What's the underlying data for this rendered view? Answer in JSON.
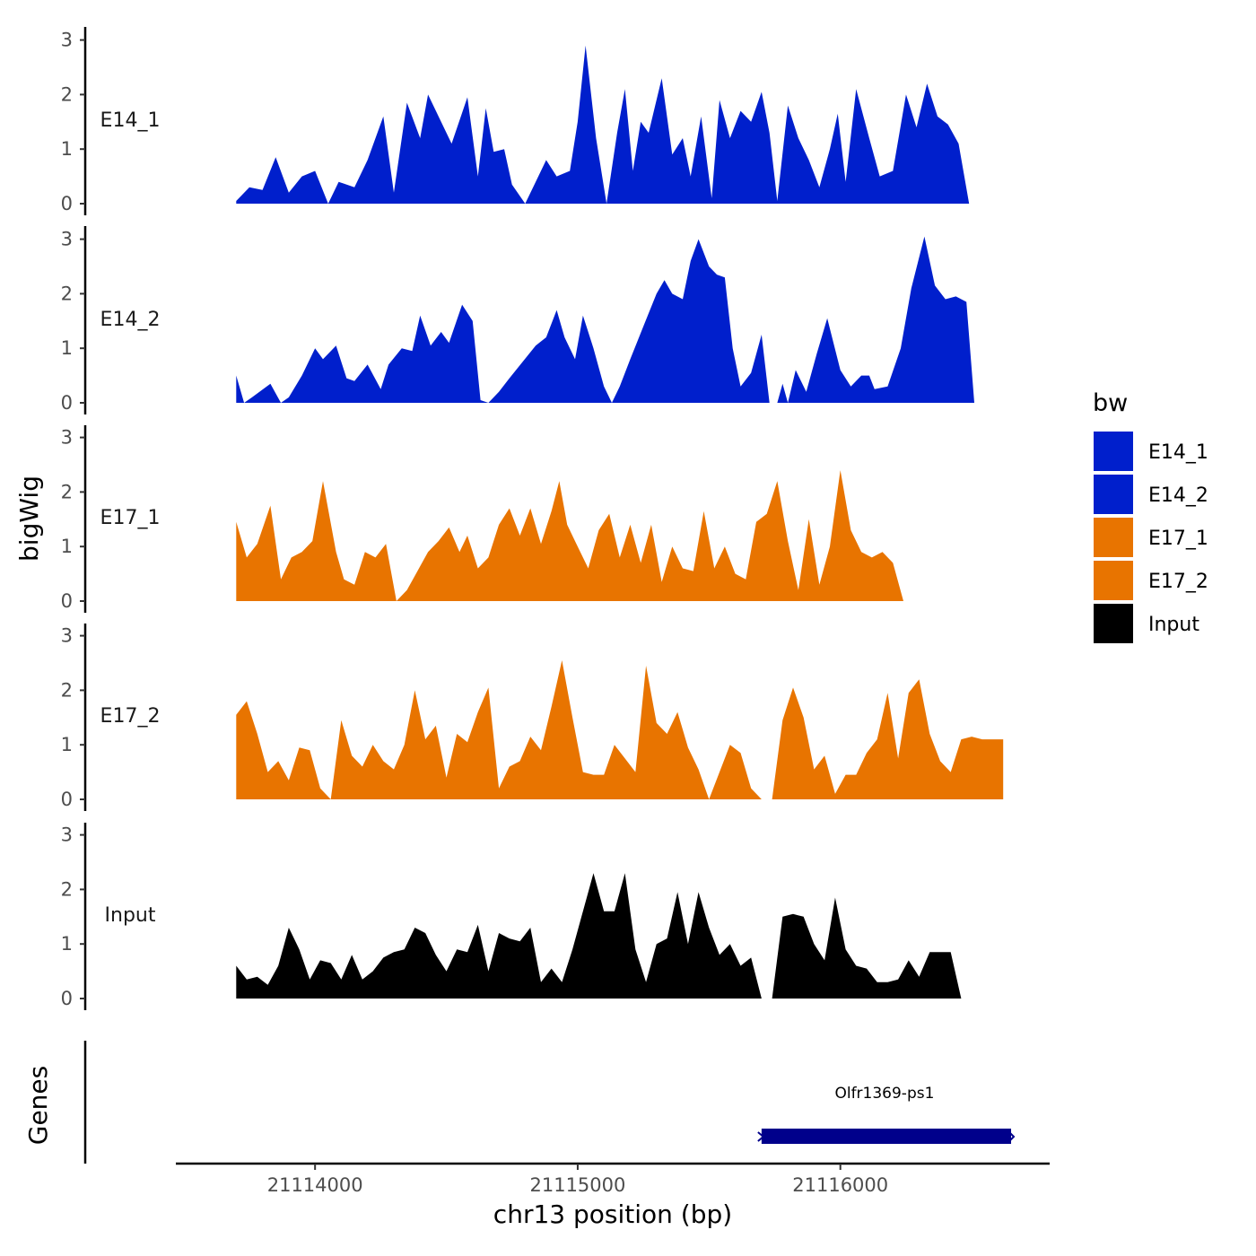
{
  "colors": {
    "E14": "#001fcc",
    "E17": "#e87400",
    "Input": "#000000",
    "gene": "#00008b"
  },
  "chart_data": {
    "type": "area",
    "title": "",
    "xlabel": "chr13 position (bp)",
    "ylabel": "bigWig",
    "genes_label": "Genes",
    "x_ticks": [
      21114000,
      21115000,
      21116000
    ],
    "x_tick_labels": [
      "21114000",
      "21115000",
      "21116000"
    ],
    "xlim": [
      21113470,
      21116790
    ],
    "ylim": [
      0,
      3.2
    ],
    "y_ticks": [
      0,
      1,
      2,
      3
    ],
    "y_tick_labels": [
      "0",
      "1",
      "2",
      "3"
    ],
    "legend": {
      "title": "bw",
      "entries": [
        {
          "name": "E14_1",
          "color": "#001fcc"
        },
        {
          "name": "E14_2",
          "color": "#001fcc"
        },
        {
          "name": "E17_1",
          "color": "#e87400"
        },
        {
          "name": "E17_2",
          "color": "#e87400"
        },
        {
          "name": "Input",
          "color": "#000000"
        }
      ]
    },
    "series": [
      {
        "name": "E14_1",
        "color": "#001fcc",
        "x": [
          21113700,
          21113750,
          21113800,
          21113850,
          21113900,
          21113950,
          21114000,
          21114050,
          21114090,
          21114150,
          21114200,
          21114260,
          21114300,
          21114350,
          21114400,
          21114430,
          21114470,
          21114520,
          21114580,
          21114620,
          21114650,
          21114680,
          21114720,
          21114750,
          21114800,
          21114840,
          21114880,
          21114920,
          21114970,
          21115000,
          21115030,
          21115070,
          21115110,
          21115150,
          21115180,
          21115210,
          21115240,
          21115270,
          21115320,
          21115360,
          21115400,
          21115430,
          21115470,
          21115510,
          21115540,
          21115580,
          21115620,
          21115660,
          21115700,
          21115730,
          21115760,
          21115800,
          21115840,
          21115880,
          21115920,
          21115960,
          21115990,
          21116020,
          21116060,
          21116110,
          21116150,
          21116200,
          21116250,
          21116290,
          21116330,
          21116370,
          21116410,
          21116450,
          21116490,
          21116520,
          21116560,
          21116600,
          21116620
        ],
        "values": [
          0.05,
          0.3,
          0.25,
          0.85,
          0.2,
          0.5,
          0.6,
          0.0,
          0.4,
          0.3,
          0.8,
          1.6,
          0.2,
          1.85,
          1.2,
          2.0,
          1.6,
          1.1,
          1.95,
          0.5,
          1.75,
          0.95,
          1.0,
          0.35,
          0.0,
          0.4,
          0.8,
          0.5,
          0.6,
          1.5,
          2.9,
          1.2,
          0.0,
          1.3,
          2.1,
          0.6,
          1.5,
          1.3,
          2.3,
          0.9,
          1.2,
          0.5,
          1.6,
          0.1,
          1.9,
          1.2,
          1.7,
          1.5,
          2.05,
          1.3,
          0.05,
          1.8,
          1.2,
          0.8,
          0.3,
          1.0,
          1.65,
          0.4,
          2.1,
          1.2,
          0.5,
          0.6,
          2.0,
          1.4,
          2.2,
          1.6,
          1.45,
          1.1,
          0,
          0,
          0,
          0,
          0
        ]
      },
      {
        "name": "E14_2",
        "color": "#001fcc",
        "x": [
          21113700,
          21113730,
          21113760,
          21113830,
          21113870,
          21113900,
          21113950,
          21114000,
          21114030,
          21114080,
          21114120,
          21114150,
          21114200,
          21114250,
          21114280,
          21114330,
          21114370,
          21114400,
          21114440,
          21114480,
          21114510,
          21114560,
          21114600,
          21114630,
          21114660,
          21114700,
          21114740,
          21114790,
          21114840,
          21114880,
          21114920,
          21114950,
          21114990,
          21115020,
          21115060,
          21115100,
          21115130,
          21115160,
          21115200,
          21115250,
          21115300,
          21115330,
          21115360,
          21115400,
          21115430,
          21115460,
          21115500,
          21115530,
          21115560,
          21115590,
          21115620,
          21115660,
          21115700,
          21115730,
          21115760,
          21115780,
          21115800,
          21115830,
          21115870,
          21115910,
          21115950,
          21116000,
          21116040,
          21116080,
          21116110,
          21116130,
          21116180,
          21116230,
          21116270,
          21116320,
          21116360,
          21116400,
          21116440,
          21116480,
          21116510,
          21116540,
          21116570,
          21116600,
          21116630
        ],
        "values": [
          0.5,
          0.0,
          0.1,
          0.35,
          0.0,
          0.1,
          0.5,
          1.0,
          0.8,
          1.05,
          0.45,
          0.4,
          0.7,
          0.25,
          0.7,
          1.0,
          0.95,
          1.6,
          1.05,
          1.3,
          1.1,
          1.8,
          1.5,
          0.05,
          0.0,
          0.2,
          0.45,
          0.75,
          1.05,
          1.2,
          1.7,
          1.2,
          0.8,
          1.6,
          1.0,
          0.3,
          0.0,
          0.3,
          0.8,
          1.4,
          2.0,
          2.25,
          2.0,
          1.9,
          2.6,
          3.0,
          2.5,
          2.35,
          2.3,
          1.0,
          0.3,
          0.55,
          1.25,
          0.0,
          0.0,
          0.35,
          0.0,
          0.6,
          0.2,
          0.9,
          1.55,
          0.6,
          0.3,
          0.5,
          0.5,
          0.25,
          0.3,
          1.0,
          2.1,
          3.05,
          2.15,
          1.9,
          1.95,
          1.85,
          0,
          0,
          0,
          0,
          0
        ]
      },
      {
        "name": "E17_1",
        "color": "#e87400",
        "x": [
          21113700,
          21113740,
          21113780,
          21113830,
          21113870,
          21113910,
          21113950,
          21113990,
          21114030,
          21114080,
          21114110,
          21114150,
          21114190,
          21114230,
          21114270,
          21114310,
          21114350,
          21114390,
          21114430,
          21114470,
          21114510,
          21114550,
          21114580,
          21114620,
          21114660,
          21114700,
          21114740,
          21114780,
          21114820,
          21114860,
          21114900,
          21114930,
          21114960,
          21115000,
          21115040,
          21115080,
          21115120,
          21115160,
          21115200,
          21115240,
          21115280,
          21115320,
          21115360,
          21115400,
          21115440,
          21115480,
          21115520,
          21115560,
          21115600,
          21115640,
          21115680,
          21115720,
          21115760,
          21115800,
          21115840,
          21115880,
          21115920,
          21115960,
          21116000,
          21116040,
          21116080,
          21116120,
          21116160,
          21116200,
          21116240,
          21116280,
          21116320,
          21116360,
          21116400,
          21116440,
          21116480,
          21116520,
          21116560,
          21116600,
          21116620
        ],
        "values": [
          1.45,
          0.8,
          1.05,
          1.75,
          0.4,
          0.8,
          0.9,
          1.1,
          2.2,
          0.9,
          0.4,
          0.3,
          0.9,
          0.8,
          1.05,
          0.0,
          0.2,
          0.55,
          0.9,
          1.1,
          1.35,
          0.9,
          1.2,
          0.6,
          0.8,
          1.4,
          1.7,
          1.2,
          1.7,
          1.05,
          1.65,
          2.2,
          1.4,
          1.0,
          0.6,
          1.3,
          1.6,
          0.8,
          1.4,
          0.7,
          1.4,
          0.35,
          1.0,
          0.6,
          0.55,
          1.65,
          0.6,
          1.0,
          0.5,
          0.4,
          1.45,
          1.6,
          2.2,
          1.1,
          0.2,
          1.5,
          0.3,
          1.0,
          2.4,
          1.3,
          0.9,
          0.8,
          0.9,
          0.7,
          0.0,
          0,
          0,
          0,
          0,
          0,
          0,
          0,
          0,
          0,
          0
        ]
      },
      {
        "name": "E17_2",
        "color": "#e87400",
        "x": [
          21113700,
          21113740,
          21113780,
          21113820,
          21113860,
          21113900,
          21113940,
          21113980,
          21114020,
          21114060,
          21114100,
          21114140,
          21114180,
          21114220,
          21114260,
          21114300,
          21114340,
          21114380,
          21114420,
          21114460,
          21114500,
          21114540,
          21114580,
          21114620,
          21114660,
          21114700,
          21114740,
          21114780,
          21114820,
          21114860,
          21114900,
          21114940,
          21114980,
          21115020,
          21115060,
          21115100,
          21115140,
          21115180,
          21115220,
          21115260,
          21115300,
          21115340,
          21115380,
          21115420,
          21115460,
          21115500,
          21115540,
          21115580,
          21115620,
          21115660,
          21115700,
          21115740,
          21115780,
          21115820,
          21115860,
          21115900,
          21115940,
          21115980,
          21116020,
          21116060,
          21116100,
          21116140,
          21116180,
          21116220,
          21116260,
          21116300,
          21116340,
          21116380,
          21116420,
          21116460,
          21116500,
          21116540,
          21116580,
          21116620
        ],
        "values": [
          1.55,
          1.8,
          1.2,
          0.5,
          0.7,
          0.35,
          0.95,
          0.9,
          0.2,
          0.0,
          1.45,
          0.8,
          0.6,
          1.0,
          0.7,
          0.55,
          1.0,
          2.0,
          1.1,
          1.35,
          0.4,
          1.2,
          1.05,
          1.6,
          2.05,
          0.2,
          0.6,
          0.7,
          1.15,
          0.9,
          1.7,
          2.55,
          1.5,
          0.5,
          0.45,
          0.45,
          1.0,
          0.75,
          0.5,
          2.45,
          1.4,
          1.2,
          1.6,
          0.95,
          0.55,
          0.0,
          0.5,
          1.0,
          0.85,
          0.2,
          0.0,
          0.0,
          1.45,
          2.05,
          1.5,
          0.55,
          0.8,
          0.1,
          0.45,
          0.45,
          0.85,
          1.1,
          1.95,
          0.75,
          1.95,
          2.2,
          1.2,
          0.7,
          0.5,
          1.1,
          1.15,
          1.1,
          1.1,
          1.1
        ]
      },
      {
        "name": "Input",
        "color": "#000000",
        "x": [
          21113700,
          21113740,
          21113780,
          21113820,
          21113860,
          21113900,
          21113940,
          21113980,
          21114020,
          21114060,
          21114100,
          21114140,
          21114180,
          21114220,
          21114260,
          21114300,
          21114340,
          21114380,
          21114420,
          21114460,
          21114500,
          21114540,
          21114580,
          21114620,
          21114660,
          21114700,
          21114740,
          21114780,
          21114820,
          21114860,
          21114900,
          21114940,
          21114980,
          21115020,
          21115060,
          21115100,
          21115140,
          21115180,
          21115220,
          21115260,
          21115300,
          21115340,
          21115380,
          21115420,
          21115460,
          21115500,
          21115540,
          21115580,
          21115620,
          21115660,
          21115700,
          21115740,
          21115780,
          21115820,
          21115860,
          21115900,
          21115940,
          21115980,
          21116020,
          21116060,
          21116100,
          21116140,
          21116180,
          21116220,
          21116260,
          21116300,
          21116340,
          21116380,
          21116420,
          21116460,
          21116500,
          21116540,
          21116580,
          21116620
        ],
        "values": [
          0.6,
          0.35,
          0.4,
          0.25,
          0.6,
          1.3,
          0.9,
          0.35,
          0.7,
          0.65,
          0.35,
          0.8,
          0.35,
          0.5,
          0.75,
          0.85,
          0.9,
          1.3,
          1.2,
          0.8,
          0.5,
          0.9,
          0.85,
          1.35,
          0.5,
          1.2,
          1.1,
          1.05,
          1.3,
          0.3,
          0.55,
          0.3,
          0.9,
          1.6,
          2.3,
          1.6,
          1.6,
          2.3,
          0.9,
          0.3,
          1.0,
          1.1,
          1.95,
          1.0,
          1.95,
          1.3,
          0.8,
          1.0,
          0.6,
          0.75,
          0.0,
          0.0,
          1.5,
          1.55,
          1.5,
          1.0,
          0.7,
          1.85,
          0.9,
          0.6,
          0.55,
          0.3,
          0.3,
          0.35,
          0.7,
          0.4,
          0.85,
          0.85,
          0.85,
          0,
          0,
          0,
          0,
          0
        ]
      }
    ],
    "genes": [
      {
        "name": "Olfr1369-ps1",
        "start": 21115700,
        "end": 21116650,
        "strand": "-"
      }
    ]
  }
}
